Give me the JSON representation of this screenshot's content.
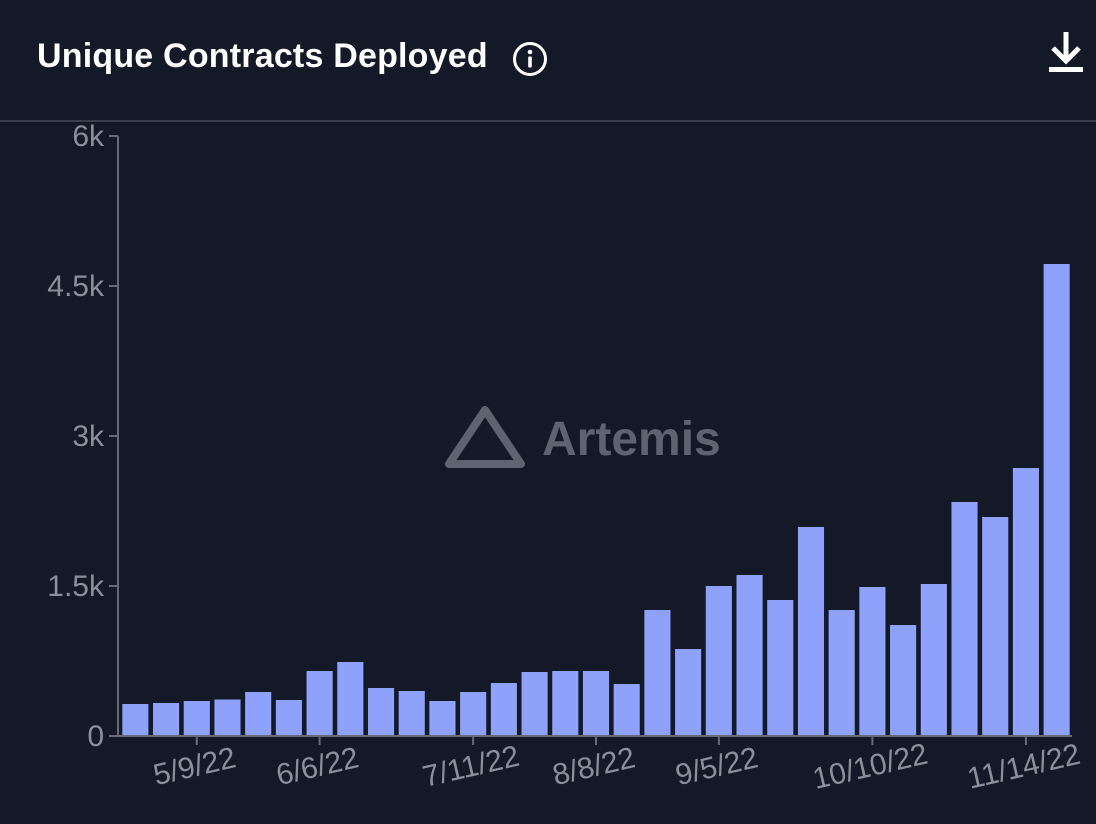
{
  "header": {
    "title": "Unique Contracts Deployed",
    "info_icon": "info-icon",
    "download_icon": "download-icon"
  },
  "watermark": {
    "text": "Artemis",
    "icon": "triangle-logo-icon"
  },
  "colors": {
    "background": "#131927",
    "bar": "#8fa2fb",
    "axis": "#666b76",
    "tick_text": "#8a8f99",
    "title": "#ffffff"
  },
  "chart_data": {
    "type": "bar",
    "title": "Unique Contracts Deployed",
    "xlabel": "",
    "ylabel": "",
    "ylim": [
      0,
      6000
    ],
    "grid": false,
    "yticks": [
      {
        "value": 0,
        "label": "0"
      },
      {
        "value": 1500,
        "label": "1.5k"
      },
      {
        "value": 3000,
        "label": "3k"
      },
      {
        "value": 4500,
        "label": "4.5k"
      },
      {
        "value": 6000,
        "label": "6k"
      }
    ],
    "xtick_labels": [
      {
        "category": "5/9/22",
        "label": "5/9/22"
      },
      {
        "category": "6/6/22",
        "label": "6/6/22"
      },
      {
        "category": "7/11/22",
        "label": "7/11/22"
      },
      {
        "category": "8/8/22",
        "label": "8/8/22"
      },
      {
        "category": "9/5/22",
        "label": "9/5/22"
      },
      {
        "category": "10/10/22",
        "label": "10/10/22"
      },
      {
        "category": "11/14/22",
        "label": "11/14/22"
      }
    ],
    "categories": [
      "4/25/22",
      "5/2/22",
      "5/9/22",
      "5/16/22",
      "5/23/22",
      "5/30/22",
      "6/6/22",
      "6/13/22",
      "6/20/22",
      "6/27/22",
      "7/4/22",
      "7/11/22",
      "7/18/22",
      "7/25/22",
      "8/1/22",
      "8/8/22",
      "8/15/22",
      "8/22/22",
      "8/29/22",
      "9/5/22",
      "9/12/22",
      "9/19/22",
      "9/26/22",
      "10/3/22",
      "10/10/22",
      "10/17/22",
      "10/24/22",
      "10/31/22",
      "11/7/22",
      "11/14/22",
      "11/21/22"
    ],
    "values": [
      320,
      330,
      350,
      365,
      440,
      360,
      650,
      740,
      480,
      450,
      350,
      440,
      530,
      640,
      650,
      650,
      520,
      1260,
      870,
      1500,
      1610,
      1360,
      2090,
      1260,
      1490,
      1110,
      1520,
      2340,
      2190,
      2680,
      4720
    ]
  }
}
